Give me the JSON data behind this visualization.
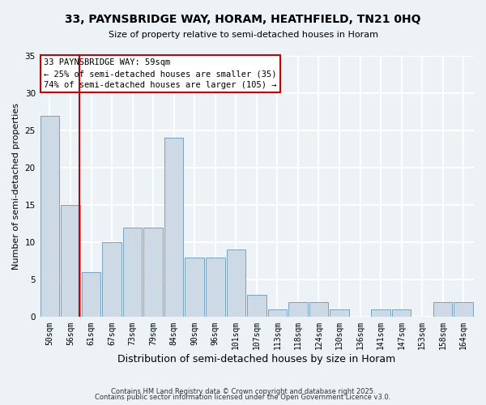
{
  "title": "33, PAYNSBRIDGE WAY, HORAM, HEATHFIELD, TN21 0HQ",
  "subtitle": "Size of property relative to semi-detached houses in Horam",
  "xlabel": "Distribution of semi-detached houses by size in Horam",
  "ylabel": "Number of semi-detached properties",
  "bar_color": "#cdd9e5",
  "bar_edge_color": "#7aa0bb",
  "categories": [
    "50sqm",
    "56sqm",
    "61sqm",
    "67sqm",
    "73sqm",
    "79sqm",
    "84sqm",
    "90sqm",
    "96sqm",
    "101sqm",
    "107sqm",
    "113sqm",
    "118sqm",
    "124sqm",
    "130sqm",
    "136sqm",
    "141sqm",
    "147sqm",
    "153sqm",
    "158sqm",
    "164sqm"
  ],
  "values": [
    27,
    15,
    6,
    10,
    12,
    12,
    24,
    8,
    8,
    9,
    3,
    1,
    2,
    2,
    1,
    0,
    1,
    1,
    0,
    2,
    2
  ],
  "ylim": [
    0,
    35
  ],
  "yticks": [
    0,
    5,
    10,
    15,
    20,
    25,
    30,
    35
  ],
  "property_line_x": 1.425,
  "annotation_title": "33 PAYNSBRIDGE WAY: 59sqm",
  "annotation_line1": "← 25% of semi-detached houses are smaller (35)",
  "annotation_line2": "74% of semi-detached houses are larger (105) →",
  "vline_color": "#cc0000",
  "annotation_box_facecolor": "#ffffff",
  "annotation_box_edgecolor": "#cc0000",
  "footer1": "Contains HM Land Registry data © Crown copyright and database right 2025.",
  "footer2": "Contains public sector information licensed under the Open Government Licence v3.0.",
  "background_color": "#edf2f7",
  "grid_color": "#ffffff",
  "title_fontsize": 10,
  "subtitle_fontsize": 8,
  "xlabel_fontsize": 9,
  "ylabel_fontsize": 8,
  "tick_fontsize": 7,
  "annotation_fontsize": 7.5,
  "footer_fontsize": 6
}
